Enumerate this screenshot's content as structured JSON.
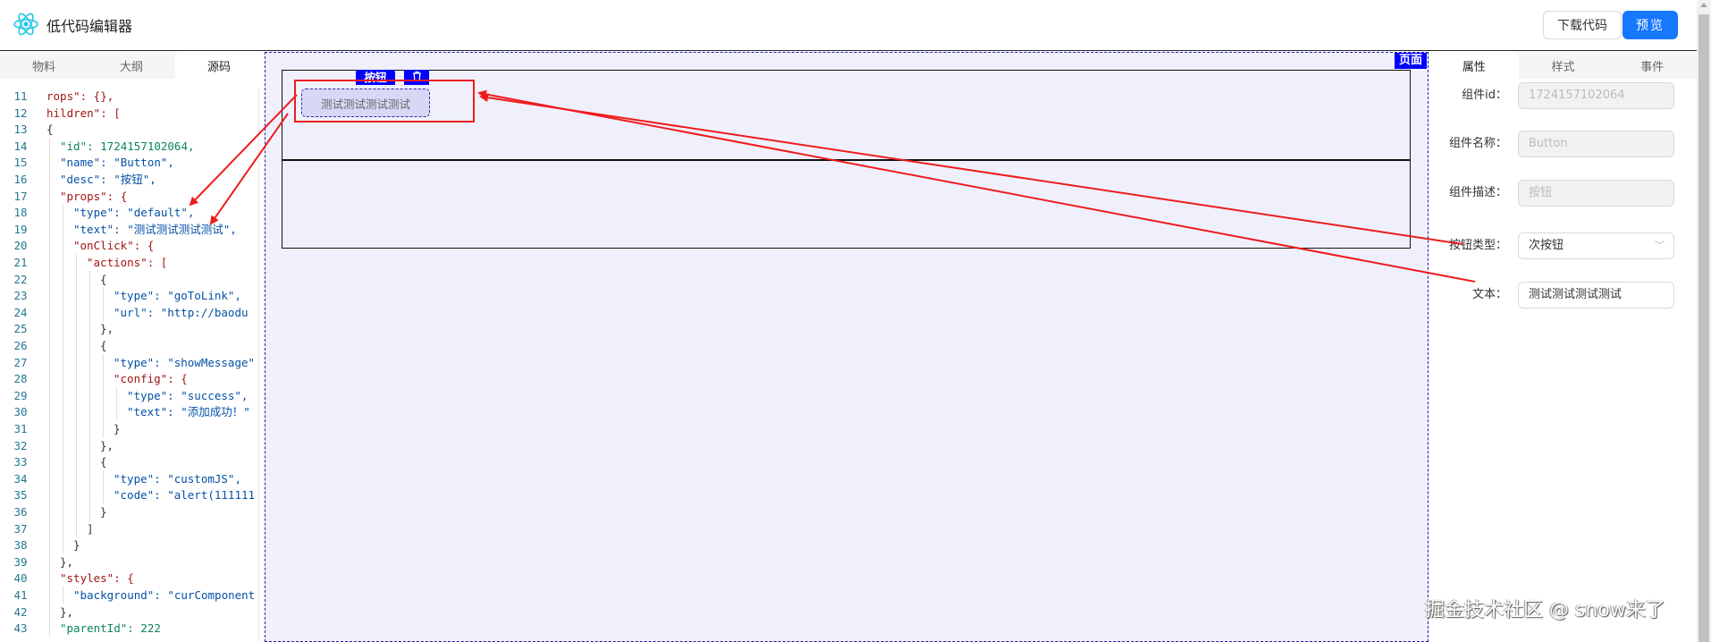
{
  "header": {
    "title": "低代码编辑器",
    "logo_icon": "react-logo-icon",
    "download_label": "下载代码",
    "preview_label": "预览",
    "accent": "#1677ff"
  },
  "left_panel": {
    "tabs": [
      {
        "label": "物料"
      },
      {
        "label": "大纲"
      },
      {
        "label": "源码",
        "active": true
      }
    ]
  },
  "code": [
    {
      "n": "11",
      "indent": 0,
      "text": "rops\": {},"
    },
    {
      "n": "12",
      "indent": 0,
      "text": "hildren\": ["
    },
    {
      "n": "13",
      "indent": 0,
      "text": "{"
    },
    {
      "n": "14",
      "indent": 1,
      "text": "\"id\": 1724157102064,"
    },
    {
      "n": "15",
      "indent": 1,
      "text": "\"name\": \"Button\","
    },
    {
      "n": "16",
      "indent": 1,
      "text": "\"desc\": \"按钮\","
    },
    {
      "n": "17",
      "indent": 1,
      "text": "\"props\": {"
    },
    {
      "n": "18",
      "indent": 2,
      "text": "\"type\": \"default\","
    },
    {
      "n": "19",
      "indent": 2,
      "text": "\"text\": \"测试测试测试测试\","
    },
    {
      "n": "20",
      "indent": 2,
      "text": "\"onClick\": {"
    },
    {
      "n": "21",
      "indent": 3,
      "text": "\"actions\": ["
    },
    {
      "n": "22",
      "indent": 4,
      "text": "{"
    },
    {
      "n": "23",
      "indent": 5,
      "text": "\"type\": \"goToLink\","
    },
    {
      "n": "24",
      "indent": 5,
      "text": "\"url\": \"http://baodu"
    },
    {
      "n": "25",
      "indent": 4,
      "text": "},"
    },
    {
      "n": "26",
      "indent": 4,
      "text": "{"
    },
    {
      "n": "27",
      "indent": 5,
      "text": "\"type\": \"showMessage\""
    },
    {
      "n": "28",
      "indent": 5,
      "text": "\"config\": {"
    },
    {
      "n": "29",
      "indent": 6,
      "text": "\"type\": \"success\","
    },
    {
      "n": "30",
      "indent": 6,
      "text": "\"text\": \"添加成功！\""
    },
    {
      "n": "31",
      "indent": 5,
      "text": "}"
    },
    {
      "n": "32",
      "indent": 4,
      "text": "},"
    },
    {
      "n": "33",
      "indent": 4,
      "text": "{"
    },
    {
      "n": "34",
      "indent": 5,
      "text": "\"type\": \"customJS\","
    },
    {
      "n": "35",
      "indent": 5,
      "text": "\"code\": \"alert(111111"
    },
    {
      "n": "36",
      "indent": 4,
      "text": "}"
    },
    {
      "n": "37",
      "indent": 3,
      "text": "]"
    },
    {
      "n": "38",
      "indent": 2,
      "text": "}"
    },
    {
      "n": "39",
      "indent": 1,
      "text": "},"
    },
    {
      "n": "40",
      "indent": 1,
      "text": "\"styles\": {"
    },
    {
      "n": "41",
      "indent": 2,
      "text": "\"background\": \"curComponent"
    },
    {
      "n": "42",
      "indent": 1,
      "text": "},"
    },
    {
      "n": "43",
      "indent": 1,
      "text": "\"parentId\": 222"
    }
  ],
  "canvas": {
    "page_badge": "页面",
    "selected_tag": "按钮",
    "delete_icon": "trash-icon",
    "button_text": "测试测试测试测试",
    "highlight_color": "#0000ff",
    "annotation_color": "#ee1c1c"
  },
  "right_panel": {
    "tabs": [
      {
        "label": "属性",
        "active": true
      },
      {
        "label": "样式"
      },
      {
        "label": "事件"
      }
    ],
    "fields": [
      {
        "label": "组件id：",
        "value": "1724157102064",
        "disabled": true
      },
      {
        "label": "组件名称：",
        "value": "Button",
        "disabled": true
      },
      {
        "label": "组件描述：",
        "value": "按钮",
        "disabled": true
      },
      {
        "label": "按钮类型：",
        "value": "次按钮",
        "type": "select"
      },
      {
        "label": "文本：",
        "value": "测试测试测试测试"
      }
    ]
  },
  "watermark": "掘金技术社区 @ snow来了"
}
